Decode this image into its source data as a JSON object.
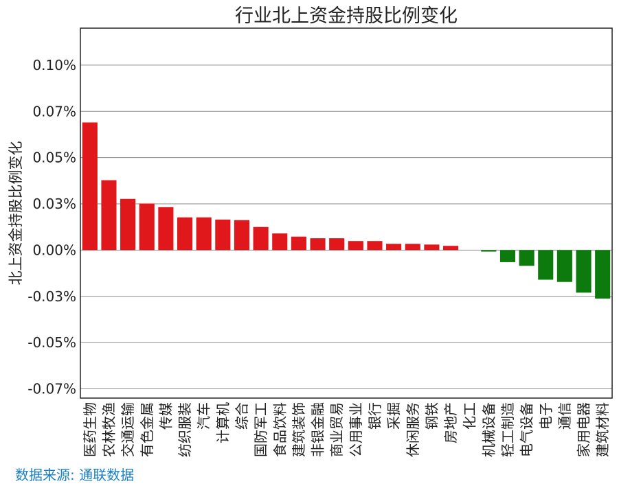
{
  "chart_data": {
    "type": "bar",
    "title": "行业北上资金持股比例变化",
    "xlabel": "",
    "ylabel": "北上资金持股比例变化",
    "ylim": [
      -0.0008,
      0.0012
    ],
    "yticks": [
      0.001,
      0.00075,
      0.0005,
      0.00025,
      0.0,
      -0.00025,
      -0.0005,
      -0.00075
    ],
    "ytick_labels": [
      "0.10%",
      "0.07%",
      "0.05%",
      "0.03%",
      "0.00%",
      "-0.03%",
      "-0.05%",
      "-0.07%"
    ],
    "grid": "horizontal",
    "categories": [
      "医药生物",
      "农林牧渔",
      "交通运输",
      "有色金属",
      "传媒",
      "纺织服装",
      "汽车",
      "计算机",
      "综合",
      "国防军工",
      "食品饮料",
      "建筑装饰",
      "非银金融",
      "商业贸易",
      "公用事业",
      "银行",
      "采掘",
      "休闲服务",
      "钢铁",
      "房地产",
      "化工",
      "机械设备",
      "轻工制造",
      "电气设备",
      "电子",
      "通信",
      "家用电器",
      "建筑材料"
    ],
    "values": [
      0.00069,
      0.000378,
      0.000277,
      0.000252,
      0.000232,
      0.000177,
      0.000177,
      0.000165,
      0.000162,
      0.000125,
      9e-05,
      7.3e-05,
      6.4e-05,
      6.4e-05,
      4.9e-05,
      4.9e-05,
      3.4e-05,
      3.4e-05,
      3e-05,
      2.3e-05,
      0.0,
      -8e-06,
      -6.5e-05,
      -8.5e-05,
      -0.00016,
      -0.000172,
      -0.00023,
      -0.000262
    ],
    "positive_color": "#e0181b",
    "negative_color": "#0c7a0c"
  },
  "source_text": "数据来源: 通联数据"
}
